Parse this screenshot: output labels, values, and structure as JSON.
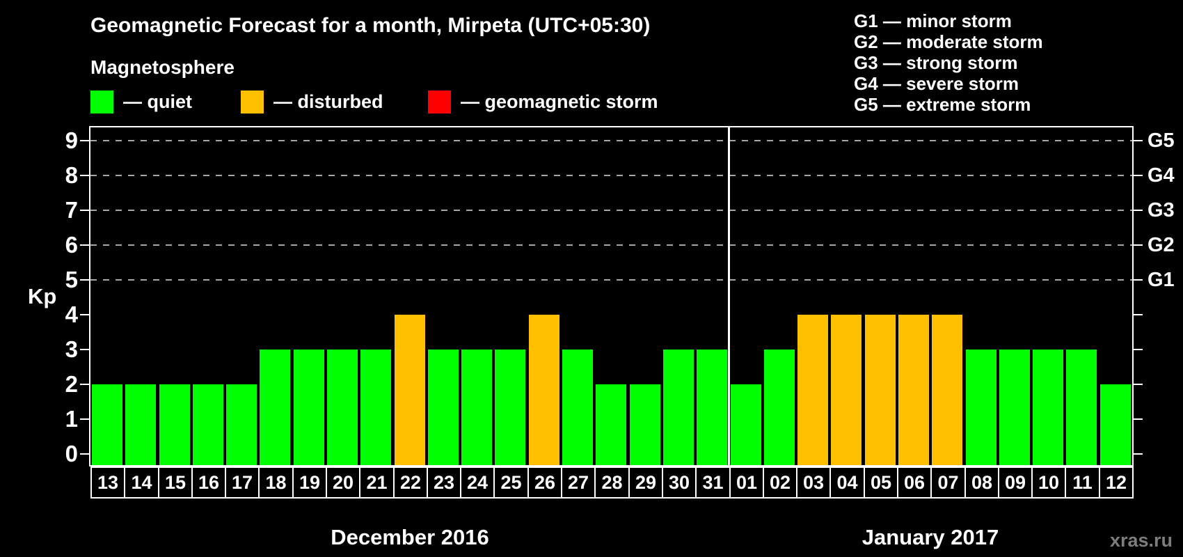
{
  "header": {
    "title": "Geomagnetic Forecast for a month, Mirpeta (UTC+05:30)",
    "subtitle": "Magnetosphere"
  },
  "condition_legend": [
    {
      "key": "quiet",
      "label": "— quiet",
      "color": "#00ff00"
    },
    {
      "key": "disturbed",
      "label": "— disturbed",
      "color": "#ffc000"
    },
    {
      "key": "storm",
      "label": "— geomagnetic storm",
      "color": "#ff0000"
    }
  ],
  "storm_scale_legend": [
    "G1 — minor storm",
    "G2 — moderate storm",
    "G3 — strong storm",
    "G4 — severe storm",
    "G5 — extreme storm"
  ],
  "watermark": "xras.ru",
  "colors": {
    "background": "#000000",
    "text": "#ffffff",
    "grid": "#a8a8a8",
    "axis": "#ffffff",
    "quiet": "#00ff00",
    "disturbed": "#ffc000",
    "storm": "#ff0000",
    "watermark": "#7d7d7d"
  },
  "chart_data": {
    "type": "bar",
    "ylabel": "Kp",
    "ylim": [
      0,
      9
    ],
    "yticks": [
      0,
      1,
      2,
      3,
      4,
      5,
      6,
      7,
      8,
      9
    ],
    "gridlines_at_kp": [
      5,
      6,
      7,
      8,
      9
    ],
    "grid": true,
    "legend_position": "top",
    "right_axis": [
      {
        "label": "G1",
        "kp": 5
      },
      {
        "label": "G2",
        "kp": 6
      },
      {
        "label": "G3",
        "kp": 7
      },
      {
        "label": "G4",
        "kp": 8
      },
      {
        "label": "G5",
        "kp": 9
      }
    ],
    "months": [
      {
        "label": "December 2016"
      },
      {
        "label": "January 2017"
      }
    ],
    "bars": [
      {
        "month": 0,
        "day": "13",
        "kp": 2,
        "condition": "quiet"
      },
      {
        "month": 0,
        "day": "14",
        "kp": 2,
        "condition": "quiet"
      },
      {
        "month": 0,
        "day": "15",
        "kp": 2,
        "condition": "quiet"
      },
      {
        "month": 0,
        "day": "16",
        "kp": 2,
        "condition": "quiet"
      },
      {
        "month": 0,
        "day": "17",
        "kp": 2,
        "condition": "quiet"
      },
      {
        "month": 0,
        "day": "18",
        "kp": 3,
        "condition": "quiet"
      },
      {
        "month": 0,
        "day": "19",
        "kp": 3,
        "condition": "quiet"
      },
      {
        "month": 0,
        "day": "20",
        "kp": 3,
        "condition": "quiet"
      },
      {
        "month": 0,
        "day": "21",
        "kp": 3,
        "condition": "quiet"
      },
      {
        "month": 0,
        "day": "22",
        "kp": 4,
        "condition": "disturbed"
      },
      {
        "month": 0,
        "day": "23",
        "kp": 3,
        "condition": "quiet"
      },
      {
        "month": 0,
        "day": "24",
        "kp": 3,
        "condition": "quiet"
      },
      {
        "month": 0,
        "day": "25",
        "kp": 3,
        "condition": "quiet"
      },
      {
        "month": 0,
        "day": "26",
        "kp": 4,
        "condition": "disturbed"
      },
      {
        "month": 0,
        "day": "27",
        "kp": 3,
        "condition": "quiet"
      },
      {
        "month": 0,
        "day": "28",
        "kp": 2,
        "condition": "quiet"
      },
      {
        "month": 0,
        "day": "29",
        "kp": 2,
        "condition": "quiet"
      },
      {
        "month": 0,
        "day": "30",
        "kp": 3,
        "condition": "quiet"
      },
      {
        "month": 0,
        "day": "31",
        "kp": 3,
        "condition": "quiet"
      },
      {
        "month": 1,
        "day": "01",
        "kp": 2,
        "condition": "quiet"
      },
      {
        "month": 1,
        "day": "02",
        "kp": 3,
        "condition": "quiet"
      },
      {
        "month": 1,
        "day": "03",
        "kp": 4,
        "condition": "disturbed"
      },
      {
        "month": 1,
        "day": "04",
        "kp": 4,
        "condition": "disturbed"
      },
      {
        "month": 1,
        "day": "05",
        "kp": 4,
        "condition": "disturbed"
      },
      {
        "month": 1,
        "day": "06",
        "kp": 4,
        "condition": "disturbed"
      },
      {
        "month": 1,
        "day": "07",
        "kp": 4,
        "condition": "disturbed"
      },
      {
        "month": 1,
        "day": "08",
        "kp": 3,
        "condition": "quiet"
      },
      {
        "month": 1,
        "day": "09",
        "kp": 3,
        "condition": "quiet"
      },
      {
        "month": 1,
        "day": "10",
        "kp": 3,
        "condition": "quiet"
      },
      {
        "month": 1,
        "day": "11",
        "kp": 3,
        "condition": "quiet"
      },
      {
        "month": 1,
        "day": "12",
        "kp": 2,
        "condition": "quiet"
      }
    ]
  }
}
